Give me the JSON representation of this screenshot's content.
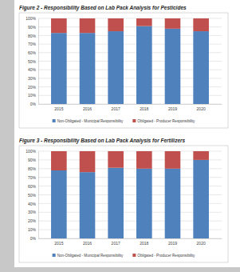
{
  "chart_data": [
    {
      "type": "bar",
      "stacked": true,
      "grid": true,
      "legend": "bottom",
      "title": "Figure 2 - Responsibility Based on Lab Pack Analysis for Pesticides",
      "categories": [
        "2015",
        "2016",
        "2017",
        "2018",
        "2019",
        "2020"
      ],
      "series": [
        {
          "name": "Non-Obligated - Municipal Responsibility",
          "color": "#4f81bd",
          "values": [
            83,
            83,
            85,
            91,
            88,
            85
          ]
        },
        {
          "name": "Obligated - Producer Responsibility",
          "color": "#c0504d",
          "values": [
            17,
            17,
            15,
            9,
            12,
            15
          ]
        }
      ],
      "ylim": [
        0,
        100
      ],
      "yticks": [
        {
          "value": 0,
          "label": "0%"
        },
        {
          "value": 10,
          "label": "10%"
        },
        {
          "value": 20,
          "label": "20%"
        },
        {
          "value": 30,
          "label": "30%"
        },
        {
          "value": 40,
          "label": "40%"
        },
        {
          "value": 50,
          "label": "50%"
        },
        {
          "value": 60,
          "label": "60%"
        },
        {
          "value": 70,
          "label": "70%"
        },
        {
          "value": 80,
          "label": "80%"
        },
        {
          "value": 90,
          "label": "90%"
        },
        {
          "value": 100,
          "label": "100%"
        }
      ]
    },
    {
      "type": "bar",
      "stacked": true,
      "grid": true,
      "legend": "bottom",
      "title": "Figure 3 - Responsibility Based on Lab Pack Analysis for Fertilizers",
      "categories": [
        "2015",
        "2016",
        "2017",
        "2018",
        "2019",
        "2020"
      ],
      "series": [
        {
          "name": "Non-Obligated - Municipal Responsibility",
          "color": "#4f81bd",
          "values": [
            78,
            76,
            81,
            80,
            80,
            90
          ]
        },
        {
          "name": "Obligated - Producer Responsibility",
          "color": "#c0504d",
          "values": [
            22,
            24,
            19,
            20,
            20,
            10
          ]
        }
      ],
      "ylim": [
        0,
        100
      ],
      "yticks": [
        {
          "value": 0,
          "label": "0%"
        },
        {
          "value": 10,
          "label": "10%"
        },
        {
          "value": 20,
          "label": "20%"
        },
        {
          "value": 30,
          "label": "30%"
        },
        {
          "value": 40,
          "label": "40%"
        },
        {
          "value": 50,
          "label": "50%"
        },
        {
          "value": 60,
          "label": "60%"
        },
        {
          "value": 70,
          "label": "70%"
        },
        {
          "value": 80,
          "label": "80%"
        },
        {
          "value": 90,
          "label": "90%"
        },
        {
          "value": 100,
          "label": "100%"
        }
      ]
    }
  ]
}
